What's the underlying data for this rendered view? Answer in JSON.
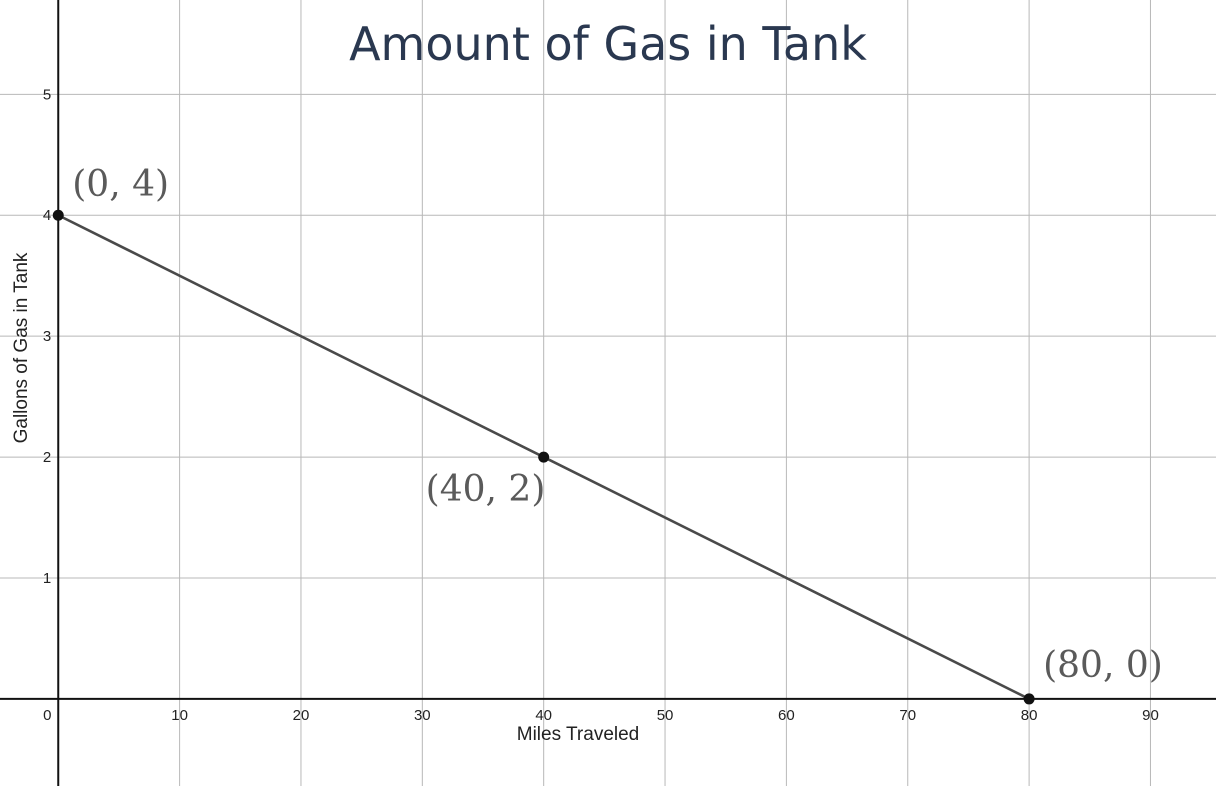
{
  "chart_data": {
    "type": "line",
    "title": "Amount of Gas in Tank",
    "xlabel": "Miles Traveled",
    "ylabel": "Gallons of Gas in Tank",
    "xlim": [
      -4.8,
      95.4
    ],
    "ylim": [
      -0.72,
      5.78
    ],
    "x_ticks": [
      0,
      10,
      20,
      30,
      40,
      50,
      60,
      70,
      80,
      90
    ],
    "y_ticks": [
      1,
      2,
      3,
      4,
      5
    ],
    "x_tick_labels": [
      "0",
      "10",
      "20",
      "30",
      "40",
      "50",
      "60",
      "70",
      "80",
      "90"
    ],
    "y_tick_labels": [
      "1",
      "2",
      "3",
      "4",
      "5"
    ],
    "grid": true,
    "series": [
      {
        "x": [
          0,
          40,
          80
        ],
        "y": [
          4,
          2,
          0
        ],
        "color": "#4a4a4a"
      }
    ],
    "points": [
      {
        "x": 0,
        "y": 4,
        "label": "(0, 4)"
      },
      {
        "x": 40,
        "y": 2,
        "label": "(40, 2)"
      },
      {
        "x": 80,
        "y": 0,
        "label": "(80, 0)"
      }
    ]
  }
}
